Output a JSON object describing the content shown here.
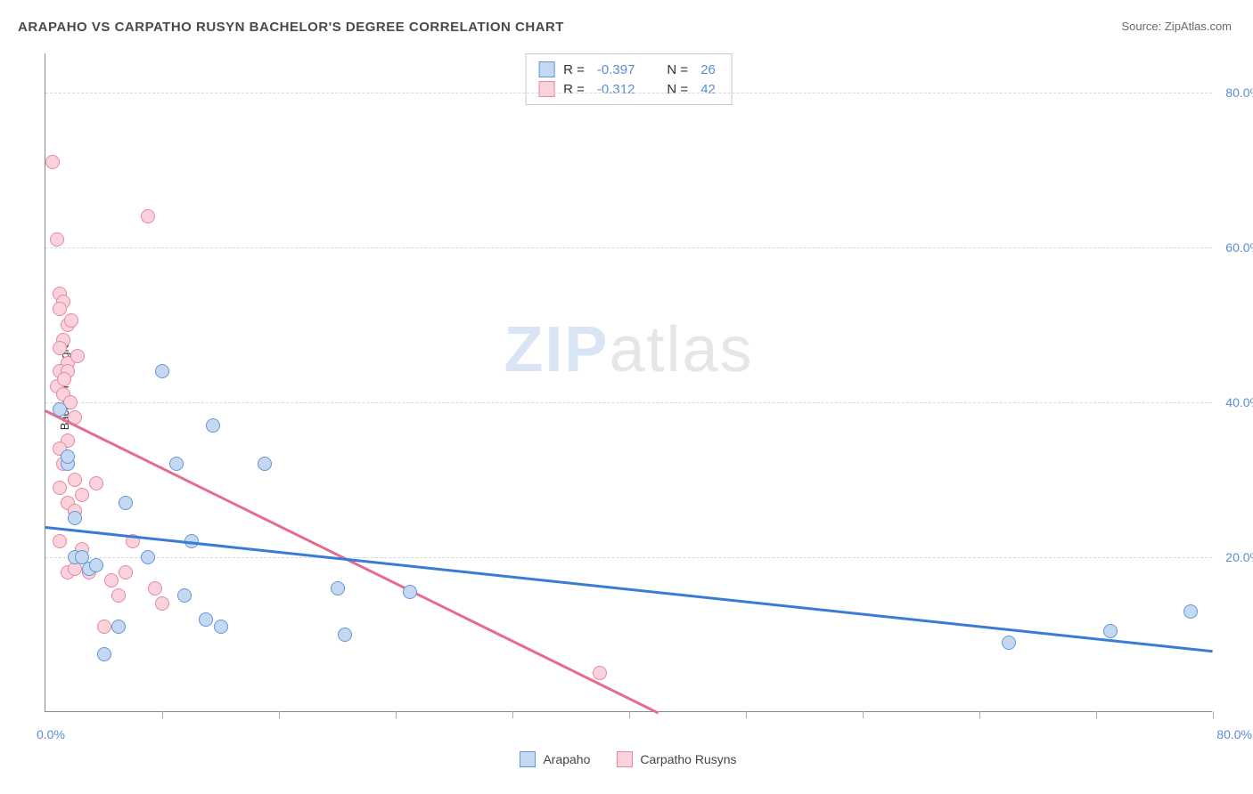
{
  "title": "ARAPAHO VS CARPATHO RUSYN BACHELOR'S DEGREE CORRELATION CHART",
  "source": "Source: ZipAtlas.com",
  "y_axis_title": "Bachelor's Degree",
  "watermark": {
    "part1": "ZIP",
    "part2": "atlas"
  },
  "chart": {
    "type": "scatter",
    "xlim": [
      0,
      80
    ],
    "ylim": [
      0,
      85
    ],
    "y_ticks": [
      20,
      40,
      60,
      80
    ],
    "y_tick_labels": [
      "20.0%",
      "40.0%",
      "60.0%",
      "80.0%"
    ],
    "x_left_label": "0.0%",
    "x_right_label": "80.0%",
    "x_minor_ticks": [
      8,
      16,
      24,
      32,
      40,
      48,
      56,
      64,
      72,
      80
    ],
    "background_color": "#ffffff",
    "grid_color": "#d8d8d8"
  },
  "series": {
    "arapaho": {
      "label": "Arapaho",
      "marker_fill": "#c4d8f2",
      "marker_stroke": "#6297d8",
      "line_color": "#3a7bd5",
      "R": "-0.397",
      "N": "26",
      "trend": {
        "x1": 0,
        "y1": 24,
        "x2": 80,
        "y2": 8
      },
      "points": [
        [
          1,
          39
        ],
        [
          1.5,
          32
        ],
        [
          1.5,
          33
        ],
        [
          2,
          25
        ],
        [
          2,
          20
        ],
        [
          2.5,
          20
        ],
        [
          3,
          18.5
        ],
        [
          3.5,
          19
        ],
        [
          4,
          7.5
        ],
        [
          5,
          11
        ],
        [
          5.5,
          27
        ],
        [
          7,
          20
        ],
        [
          8,
          44
        ],
        [
          9,
          32
        ],
        [
          9.5,
          15
        ],
        [
          10,
          22
        ],
        [
          11,
          12
        ],
        [
          11.5,
          37
        ],
        [
          12,
          11
        ],
        [
          15,
          32
        ],
        [
          20,
          16
        ],
        [
          20.5,
          10
        ],
        [
          25,
          15.5
        ],
        [
          66,
          9
        ],
        [
          73,
          10.5
        ],
        [
          78.5,
          13
        ]
      ]
    },
    "carpatho": {
      "label": "Carpatho Rusyns",
      "marker_fill": "#f9d2dc",
      "marker_stroke": "#e887a4",
      "line_color": "#e56b8f",
      "R": "-0.312",
      "N": "42",
      "trend": {
        "x1": 0,
        "y1": 39,
        "x2": 42,
        "y2": 0
      },
      "points": [
        [
          0.5,
          71
        ],
        [
          0.8,
          61
        ],
        [
          1,
          54
        ],
        [
          1.2,
          53
        ],
        [
          1,
          52
        ],
        [
          1.5,
          50
        ],
        [
          1.2,
          48
        ],
        [
          1,
          47
        ],
        [
          1.5,
          45
        ],
        [
          1,
          44
        ],
        [
          1.5,
          44
        ],
        [
          0.8,
          42
        ],
        [
          1.2,
          41
        ],
        [
          1,
          39
        ],
        [
          2,
          38
        ],
        [
          1.5,
          35
        ],
        [
          1,
          34
        ],
        [
          1.2,
          32
        ],
        [
          2,
          30
        ],
        [
          1,
          29
        ],
        [
          2.5,
          28
        ],
        [
          1.5,
          27
        ],
        [
          2,
          26
        ],
        [
          1,
          22
        ],
        [
          2.5,
          21
        ],
        [
          1.5,
          18
        ],
        [
          2,
          18.5
        ],
        [
          3,
          18
        ],
        [
          3.5,
          29.5
        ],
        [
          4,
          11
        ],
        [
          4.5,
          17
        ],
        [
          5,
          15
        ],
        [
          5.5,
          18
        ],
        [
          6,
          22
        ],
        [
          7,
          64
        ],
        [
          7.5,
          16
        ],
        [
          8,
          14
        ],
        [
          38,
          5
        ],
        [
          1.8,
          50.5
        ],
        [
          2.2,
          46
        ],
        [
          1.3,
          43
        ],
        [
          1.7,
          40
        ]
      ]
    }
  },
  "stats_labels": {
    "R": "R =",
    "N": "N ="
  },
  "legend_title": ""
}
